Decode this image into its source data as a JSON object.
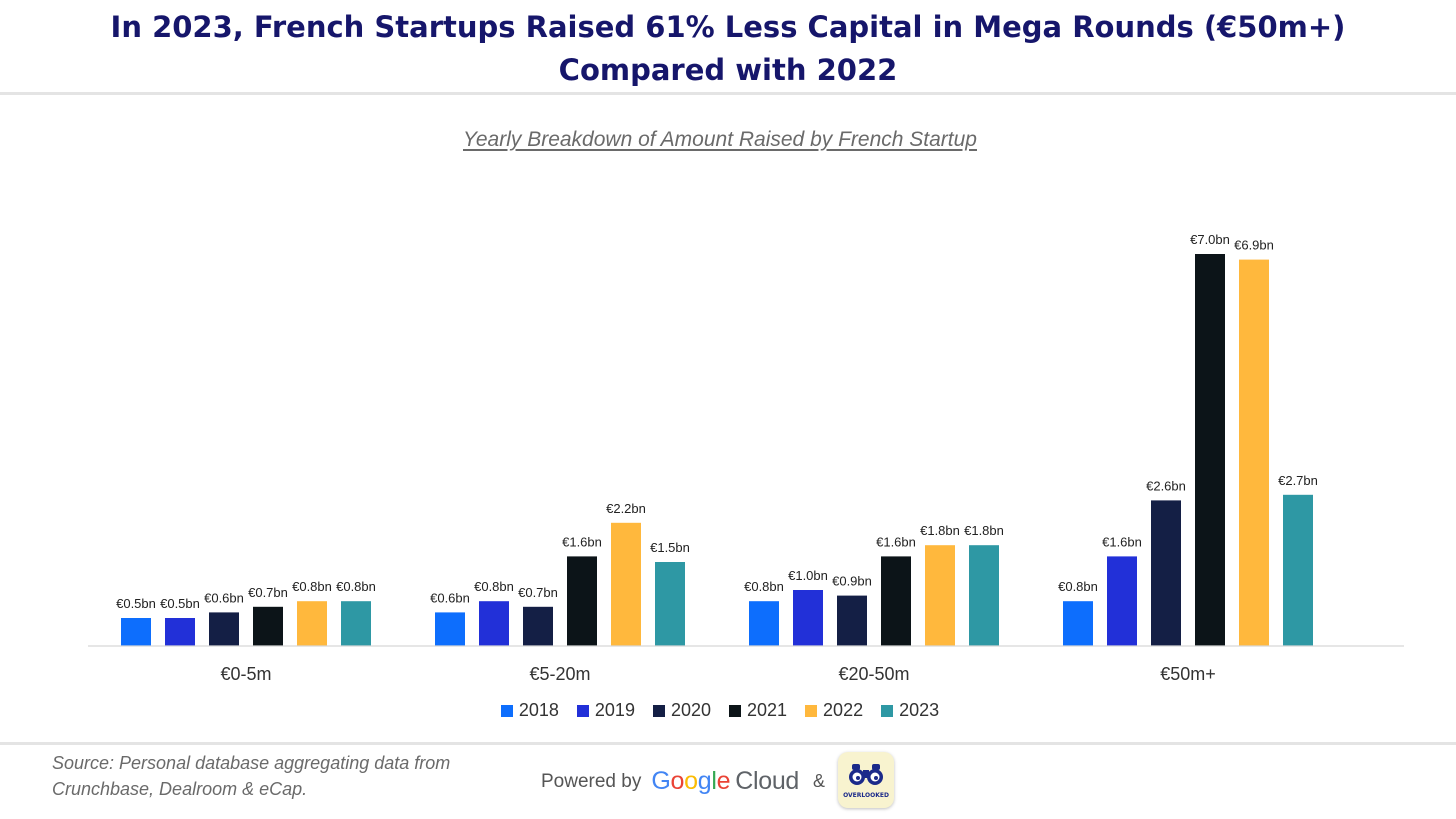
{
  "header": {
    "title": "In 2023, French Startups Raised 61% Less Capital in Mega Rounds (€50m+) Compared with 2022"
  },
  "chart_data": {
    "type": "bar",
    "subtitle": "Yearly Breakdown of Amount Raised by French Startup",
    "categories": [
      "€0-5m",
      "€5-20m",
      "€20-50m",
      "€50m+"
    ],
    "series": [
      {
        "name": "2018",
        "color": "#0d6efd",
        "values": [
          0.5,
          0.6,
          0.8,
          0.8
        ],
        "labels": [
          "€0.5bn",
          "€0.6bn",
          "€0.8bn",
          "€0.8bn"
        ]
      },
      {
        "name": "2019",
        "color": "#2230d8",
        "values": [
          0.5,
          0.8,
          1.0,
          1.6
        ],
        "labels": [
          "€0.5bn",
          "€0.8bn",
          "€1.0bn",
          "€1.6bn"
        ]
      },
      {
        "name": "2020",
        "color": "#141f45",
        "values": [
          0.6,
          0.7,
          0.9,
          2.6
        ],
        "labels": [
          "€0.6bn",
          "€0.7bn",
          "€0.9bn",
          "€2.6bn"
        ]
      },
      {
        "name": "2021",
        "color": "#0c1418",
        "values": [
          0.7,
          1.6,
          1.6,
          7.0
        ],
        "labels": [
          "€0.7bn",
          "€1.6bn",
          "€1.6bn",
          "€7.0bn"
        ]
      },
      {
        "name": "2022",
        "color": "#ffb83d",
        "values": [
          0.8,
          2.2,
          1.8,
          6.9
        ],
        "labels": [
          "€0.8bn",
          "€2.2bn",
          "€1.8bn",
          "€6.9bn"
        ]
      },
      {
        "name": "2023",
        "color": "#2e98a4",
        "values": [
          0.8,
          1.5,
          1.8,
          2.7
        ],
        "labels": [
          "€0.8bn",
          "€1.5bn",
          "€1.8bn",
          "€2.7bn"
        ]
      }
    ],
    "ylim": [
      0,
      7.0
    ],
    "grid": false,
    "legend_position": "bottom"
  },
  "footer": {
    "source": "Source: Personal database aggregating data from Crunchbase, Dealroom & eCap.",
    "powered_by": "Powered by",
    "google": [
      "G",
      "o",
      "o",
      "g",
      "l",
      "e"
    ],
    "google_colors": [
      "#4285F4",
      "#EA4335",
      "#FBBC05",
      "#4285F4",
      "#34A853",
      "#EA4335"
    ],
    "cloud": "Cloud",
    "ampersand": "&",
    "badge_text": "OVERLOOKED"
  }
}
